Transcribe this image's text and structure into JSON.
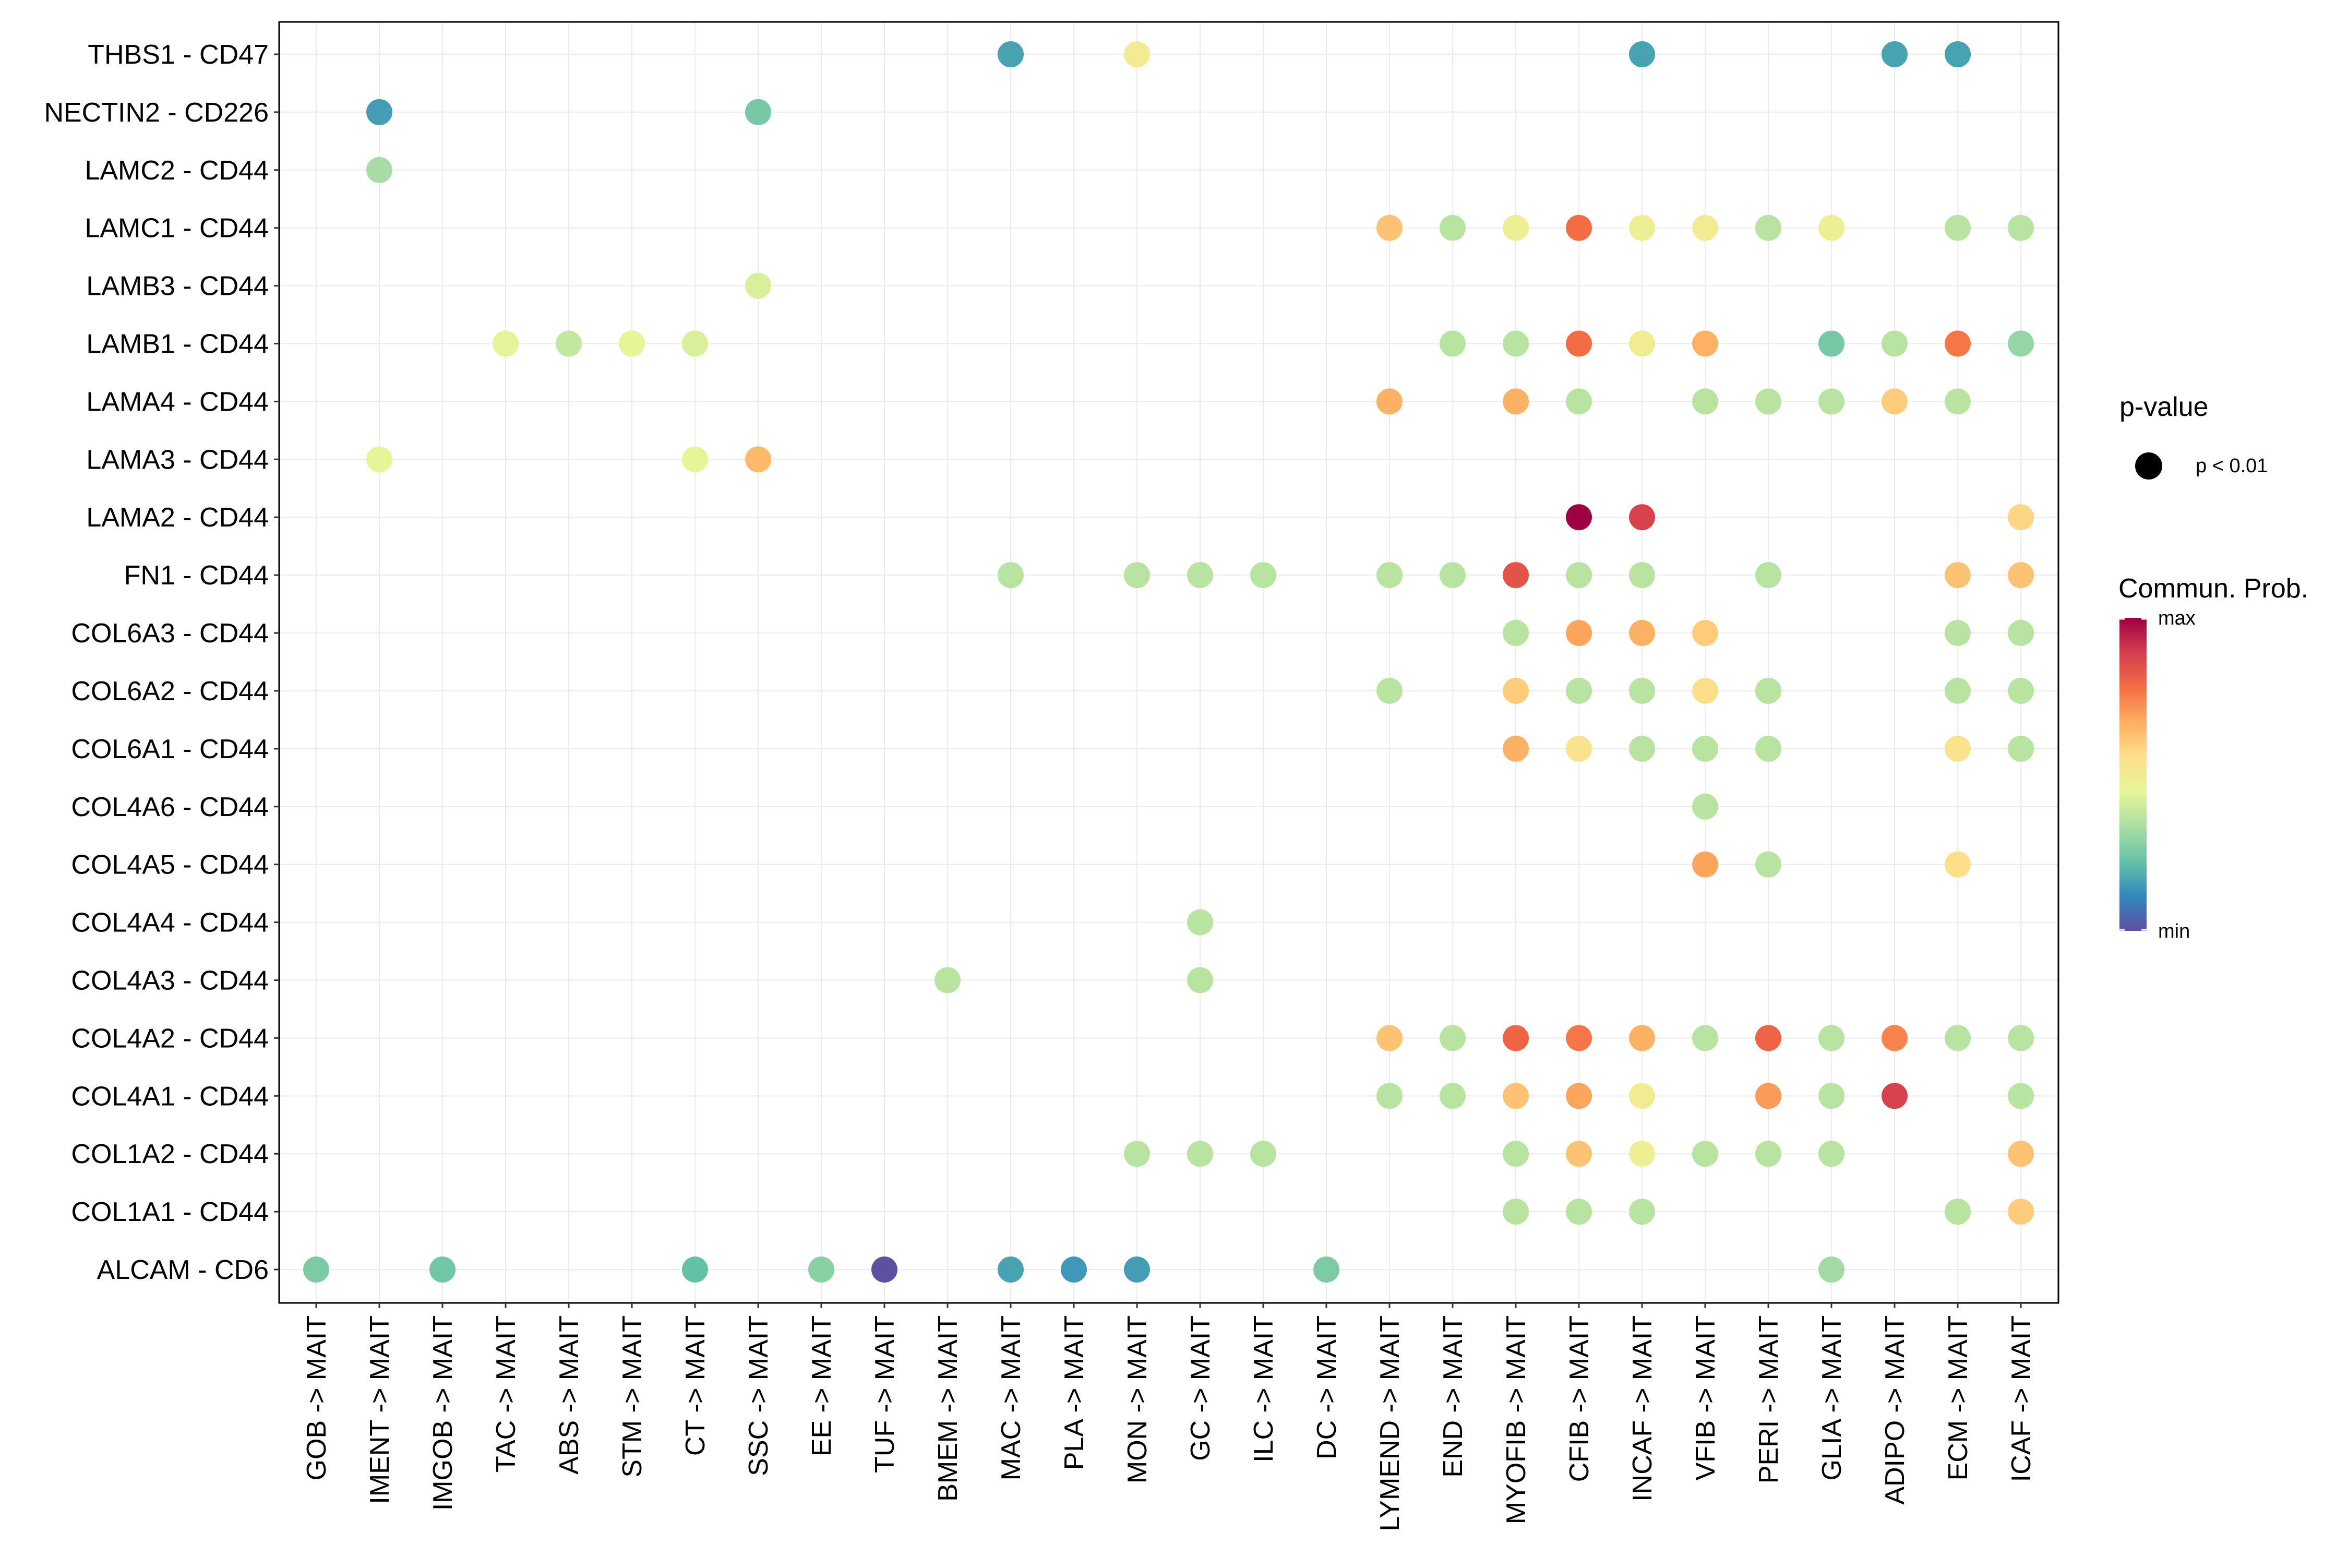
{
  "chart_data": {
    "type": "dot",
    "title": "",
    "xlabel": "",
    "ylabel": "",
    "categories_x": [
      "GOB -> MAIT",
      "IMENT -> MAIT",
      "IMGOB -> MAIT",
      "TAC -> MAIT",
      "ABS -> MAIT",
      "STM -> MAIT",
      "CT -> MAIT",
      "SSC -> MAIT",
      "EE -> MAIT",
      "TUF -> MAIT",
      "BMEM -> MAIT",
      "MAC -> MAIT",
      "PLA -> MAIT",
      "MON -> MAIT",
      "GC -> MAIT",
      "ILC -> MAIT",
      "DC -> MAIT",
      "LYMEND -> MAIT",
      "END -> MAIT",
      "MYOFIB -> MAIT",
      "CFIB -> MAIT",
      "INCAF -> MAIT",
      "VFIB -> MAIT",
      "PERI -> MAIT",
      "GLIA -> MAIT",
      "ADIPO -> MAIT",
      "ECM -> MAIT",
      "ICAF -> MAIT"
    ],
    "categories_y": [
      "THBS1 - CD47",
      "NECTIN2 - CD226",
      "LAMC2 - CD44",
      "LAMC1 - CD44",
      "LAMB3 - CD44",
      "LAMB1 - CD44",
      "LAMA4 - CD44",
      "LAMA3 - CD44",
      "LAMA2 - CD44",
      "FN1 - CD44",
      "COL6A3 - CD44",
      "COL6A2 - CD44",
      "COL6A1 - CD44",
      "COL4A6 - CD44",
      "COL4A5 - CD44",
      "COL4A4 - CD44",
      "COL4A3 - CD44",
      "COL4A2 - CD44",
      "COL4A1 - CD44",
      "COL1A2 - CD44",
      "COL1A1 - CD44",
      "ALCAM - CD6"
    ],
    "value_scale": "relative communication probability, 0 = min, 1 = max",
    "points": [
      [
        "MAC -> MAIT",
        "THBS1 - CD47",
        0.16
      ],
      [
        "MON -> MAIT",
        "THBS1 - CD47",
        0.5
      ],
      [
        "INCAF -> MAIT",
        "THBS1 - CD47",
        0.16
      ],
      [
        "ADIPO -> MAIT",
        "THBS1 - CD47",
        0.16
      ],
      [
        "ECM -> MAIT",
        "THBS1 - CD47",
        0.16
      ],
      [
        "IMENT -> MAIT",
        "NECTIN2 - CD226",
        0.15
      ],
      [
        "SSC -> MAIT",
        "NECTIN2 - CD226",
        0.25
      ],
      [
        "IMENT -> MAIT",
        "LAMC2 - CD44",
        0.33
      ],
      [
        "LYMEND -> MAIT",
        "LAMC1 - CD44",
        0.62
      ],
      [
        "END -> MAIT",
        "LAMC1 - CD44",
        0.36
      ],
      [
        "MYOFIB -> MAIT",
        "LAMC1 - CD44",
        0.48
      ],
      [
        "CFIB -> MAIT",
        "LAMC1 - CD44",
        0.78
      ],
      [
        "INCAF -> MAIT",
        "LAMC1 - CD44",
        0.48
      ],
      [
        "VFIB -> MAIT",
        "LAMC1 - CD44",
        0.5
      ],
      [
        "PERI -> MAIT",
        "LAMC1 - CD44",
        0.36
      ],
      [
        "GLIA -> MAIT",
        "LAMC1 - CD44",
        0.48
      ],
      [
        "ECM -> MAIT",
        "LAMC1 - CD44",
        0.36
      ],
      [
        "ICAF -> MAIT",
        "LAMC1 - CD44",
        0.36
      ],
      [
        "SSC -> MAIT",
        "LAMB3 - CD44",
        0.42
      ],
      [
        "TAC -> MAIT",
        "LAMB1 - CD44",
        0.44
      ],
      [
        "ABS -> MAIT",
        "LAMB1 - CD44",
        0.38
      ],
      [
        "STM -> MAIT",
        "LAMB1 - CD44",
        0.45
      ],
      [
        "CT -> MAIT",
        "LAMB1 - CD44",
        0.42
      ],
      [
        "END -> MAIT",
        "LAMB1 - CD44",
        0.36
      ],
      [
        "MYOFIB -> MAIT",
        "LAMB1 - CD44",
        0.36
      ],
      [
        "CFIB -> MAIT",
        "LAMB1 - CD44",
        0.78
      ],
      [
        "INCAF -> MAIT",
        "LAMB1 - CD44",
        0.5
      ],
      [
        "VFIB -> MAIT",
        "LAMB1 - CD44",
        0.66
      ],
      [
        "GLIA -> MAIT",
        "LAMB1 - CD44",
        0.25
      ],
      [
        "ADIPO -> MAIT",
        "LAMB1 - CD44",
        0.36
      ],
      [
        "ECM -> MAIT",
        "LAMB1 - CD44",
        0.76
      ],
      [
        "ICAF -> MAIT",
        "LAMB1 - CD44",
        0.3
      ],
      [
        "LYMEND -> MAIT",
        "LAMA4 - CD44",
        0.66
      ],
      [
        "MYOFIB -> MAIT",
        "LAMA4 - CD44",
        0.66
      ],
      [
        "CFIB -> MAIT",
        "LAMA4 - CD44",
        0.36
      ],
      [
        "VFIB -> MAIT",
        "LAMA4 - CD44",
        0.36
      ],
      [
        "PERI -> MAIT",
        "LAMA4 - CD44",
        0.36
      ],
      [
        "GLIA -> MAIT",
        "LAMA4 - CD44",
        0.36
      ],
      [
        "ADIPO -> MAIT",
        "LAMA4 - CD44",
        0.6
      ],
      [
        "ECM -> MAIT",
        "LAMA4 - CD44",
        0.36
      ],
      [
        "IMENT -> MAIT",
        "LAMA3 - CD44",
        0.45
      ],
      [
        "CT -> MAIT",
        "LAMA3 - CD44",
        0.45
      ],
      [
        "SSC -> MAIT",
        "LAMA3 - CD44",
        0.64
      ],
      [
        "CFIB -> MAIT",
        "LAMA2 - CD44",
        1.0
      ],
      [
        "INCAF -> MAIT",
        "LAMA2 - CD44",
        0.88
      ],
      [
        "ICAF -> MAIT",
        "LAMA2 - CD44",
        0.58
      ],
      [
        "MAC -> MAIT",
        "FN1 - CD44",
        0.36
      ],
      [
        "MON -> MAIT",
        "FN1 - CD44",
        0.36
      ],
      [
        "GC -> MAIT",
        "FN1 - CD44",
        0.36
      ],
      [
        "ILC -> MAIT",
        "FN1 - CD44",
        0.36
      ],
      [
        "LYMEND -> MAIT",
        "FN1 - CD44",
        0.36
      ],
      [
        "END -> MAIT",
        "FN1 - CD44",
        0.36
      ],
      [
        "MYOFIB -> MAIT",
        "FN1 - CD44",
        0.84
      ],
      [
        "CFIB -> MAIT",
        "FN1 - CD44",
        0.36
      ],
      [
        "INCAF -> MAIT",
        "FN1 - CD44",
        0.36
      ],
      [
        "PERI -> MAIT",
        "FN1 - CD44",
        0.36
      ],
      [
        "ECM -> MAIT",
        "FN1 - CD44",
        0.62
      ],
      [
        "ICAF -> MAIT",
        "FN1 - CD44",
        0.62
      ],
      [
        "MYOFIB -> MAIT",
        "COL6A3 - CD44",
        0.36
      ],
      [
        "CFIB -> MAIT",
        "COL6A3 - CD44",
        0.68
      ],
      [
        "INCAF -> MAIT",
        "COL6A3 - CD44",
        0.66
      ],
      [
        "VFIB -> MAIT",
        "COL6A3 - CD44",
        0.6
      ],
      [
        "ECM -> MAIT",
        "COL6A3 - CD44",
        0.36
      ],
      [
        "ICAF -> MAIT",
        "COL6A3 - CD44",
        0.36
      ],
      [
        "LYMEND -> MAIT",
        "COL6A2 - CD44",
        0.36
      ],
      [
        "MYOFIB -> MAIT",
        "COL6A2 - CD44",
        0.6
      ],
      [
        "CFIB -> MAIT",
        "COL6A2 - CD44",
        0.36
      ],
      [
        "INCAF -> MAIT",
        "COL6A2 - CD44",
        0.36
      ],
      [
        "VFIB -> MAIT",
        "COL6A2 - CD44",
        0.56
      ],
      [
        "PERI -> MAIT",
        "COL6A2 - CD44",
        0.36
      ],
      [
        "ECM -> MAIT",
        "COL6A2 - CD44",
        0.36
      ],
      [
        "ICAF -> MAIT",
        "COL6A2 - CD44",
        0.36
      ],
      [
        "MYOFIB -> MAIT",
        "COL6A1 - CD44",
        0.66
      ],
      [
        "CFIB -> MAIT",
        "COL6A1 - CD44",
        0.54
      ],
      [
        "INCAF -> MAIT",
        "COL6A1 - CD44",
        0.36
      ],
      [
        "VFIB -> MAIT",
        "COL6A1 - CD44",
        0.36
      ],
      [
        "PERI -> MAIT",
        "COL6A1 - CD44",
        0.36
      ],
      [
        "ECM -> MAIT",
        "COL6A1 - CD44",
        0.54
      ],
      [
        "ICAF -> MAIT",
        "COL6A1 - CD44",
        0.36
      ],
      [
        "VFIB -> MAIT",
        "COL4A6 - CD44",
        0.36
      ],
      [
        "VFIB -> MAIT",
        "COL4A5 - CD44",
        0.68
      ],
      [
        "PERI -> MAIT",
        "COL4A5 - CD44",
        0.36
      ],
      [
        "ECM -> MAIT",
        "COL4A5 - CD44",
        0.56
      ],
      [
        "GC -> MAIT",
        "COL4A4 - CD44",
        0.36
      ],
      [
        "BMEM -> MAIT",
        "COL4A3 - CD44",
        0.36
      ],
      [
        "GC -> MAIT",
        "COL4A3 - CD44",
        0.36
      ],
      [
        "LYMEND -> MAIT",
        "COL4A2 - CD44",
        0.62
      ],
      [
        "END -> MAIT",
        "COL4A2 - CD44",
        0.36
      ],
      [
        "MYOFIB -> MAIT",
        "COL4A2 - CD44",
        0.8
      ],
      [
        "CFIB -> MAIT",
        "COL4A2 - CD44",
        0.76
      ],
      [
        "INCAF -> MAIT",
        "COL4A2 - CD44",
        0.66
      ],
      [
        "VFIB -> MAIT",
        "COL4A2 - CD44",
        0.36
      ],
      [
        "PERI -> MAIT",
        "COL4A2 - CD44",
        0.8
      ],
      [
        "GLIA -> MAIT",
        "COL4A2 - CD44",
        0.36
      ],
      [
        "ADIPO -> MAIT",
        "COL4A2 - CD44",
        0.74
      ],
      [
        "ECM -> MAIT",
        "COL4A2 - CD44",
        0.36
      ],
      [
        "ICAF -> MAIT",
        "COL4A2 - CD44",
        0.36
      ],
      [
        "LYMEND -> MAIT",
        "COL4A1 - CD44",
        0.36
      ],
      [
        "END -> MAIT",
        "COL4A1 - CD44",
        0.36
      ],
      [
        "MYOFIB -> MAIT",
        "COL4A1 - CD44",
        0.62
      ],
      [
        "CFIB -> MAIT",
        "COL4A1 - CD44",
        0.68
      ],
      [
        "INCAF -> MAIT",
        "COL4A1 - CD44",
        0.5
      ],
      [
        "PERI -> MAIT",
        "COL4A1 - CD44",
        0.7
      ],
      [
        "GLIA -> MAIT",
        "COL4A1 - CD44",
        0.36
      ],
      [
        "ADIPO -> MAIT",
        "COL4A1 - CD44",
        0.88
      ],
      [
        "ICAF -> MAIT",
        "COL4A1 - CD44",
        0.36
      ],
      [
        "MON -> MAIT",
        "COL1A2 - CD44",
        0.36
      ],
      [
        "GC -> MAIT",
        "COL1A2 - CD44",
        0.36
      ],
      [
        "ILC -> MAIT",
        "COL1A2 - CD44",
        0.36
      ],
      [
        "MYOFIB -> MAIT",
        "COL1A2 - CD44",
        0.36
      ],
      [
        "CFIB -> MAIT",
        "COL1A2 - CD44",
        0.62
      ],
      [
        "INCAF -> MAIT",
        "COL1A2 - CD44",
        0.48
      ],
      [
        "VFIB -> MAIT",
        "COL1A2 - CD44",
        0.36
      ],
      [
        "PERI -> MAIT",
        "COL1A2 - CD44",
        0.36
      ],
      [
        "GLIA -> MAIT",
        "COL1A2 - CD44",
        0.36
      ],
      [
        "ICAF -> MAIT",
        "COL1A2 - CD44",
        0.62
      ],
      [
        "MYOFIB -> MAIT",
        "COL1A1 - CD44",
        0.36
      ],
      [
        "CFIB -> MAIT",
        "COL1A1 - CD44",
        0.36
      ],
      [
        "INCAF -> MAIT",
        "COL1A1 - CD44",
        0.36
      ],
      [
        "ECM -> MAIT",
        "COL1A1 - CD44",
        0.36
      ],
      [
        "ICAF -> MAIT",
        "COL1A1 - CD44",
        0.6
      ],
      [
        "GOB -> MAIT",
        "ALCAM - CD6",
        0.26
      ],
      [
        "IMGOB -> MAIT",
        "ALCAM - CD6",
        0.24
      ],
      [
        "CT -> MAIT",
        "ALCAM - CD6",
        0.22
      ],
      [
        "EE -> MAIT",
        "ALCAM - CD6",
        0.28
      ],
      [
        "TUF -> MAIT",
        "ALCAM - CD6",
        0.0
      ],
      [
        "MAC -> MAIT",
        "ALCAM - CD6",
        0.16
      ],
      [
        "PLA -> MAIT",
        "ALCAM - CD6",
        0.14
      ],
      [
        "MON -> MAIT",
        "ALCAM - CD6",
        0.15
      ],
      [
        "DC -> MAIT",
        "ALCAM - CD6",
        0.26
      ],
      [
        "GLIA -> MAIT",
        "ALCAM - CD6",
        0.32
      ]
    ],
    "legend": {
      "pvalue_title": "p-value",
      "pvalue_label": "p < 0.01",
      "color_title": "Commun. Prob.",
      "color_max": "max",
      "color_min": "min",
      "palette": [
        "#5E4FA2",
        "#3288BD",
        "#66C2A5",
        "#ABDDA4",
        "#E6F598",
        "#FEE08B",
        "#FDAE61",
        "#F46D43",
        "#D53E4F",
        "#9E0142"
      ]
    }
  }
}
